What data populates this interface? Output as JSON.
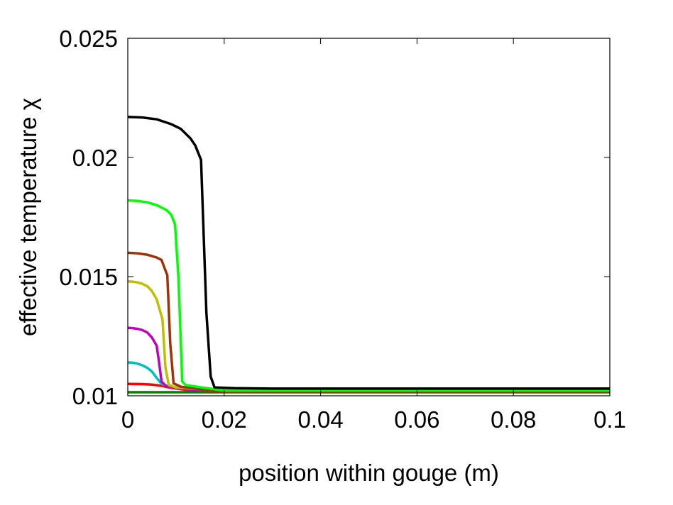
{
  "chart_data": {
    "type": "line",
    "xlabel": "position within gouge (m)",
    "ylabel": "effective temperature χ",
    "xlim": [
      0,
      0.1
    ],
    "ylim": [
      0.01,
      0.025
    ],
    "xticks": [
      "0",
      "0.02",
      "0.04",
      "0.06",
      "0.08",
      "0.1"
    ],
    "yticks": [
      "0.01",
      "0.015",
      "0.02",
      "0.025"
    ],
    "xtick_values": [
      0,
      0.02,
      0.04,
      0.06,
      0.08,
      0.1
    ],
    "ytick_values": [
      0.01,
      0.015,
      0.02,
      0.025
    ],
    "grid": false,
    "series": [
      {
        "color": "#007f00",
        "x": [
          0,
          0.1
        ],
        "y": [
          0.01015,
          0.01015
        ]
      },
      {
        "color": "#ff0000",
        "x": [
          0,
          0.003,
          0.005,
          0.007,
          0.009,
          0.012,
          0.02,
          0.1
        ],
        "y": [
          0.0105,
          0.01049,
          0.01047,
          0.01042,
          0.01033,
          0.01025,
          0.0102,
          0.0102
        ]
      },
      {
        "color": "#00bfbf",
        "x": [
          0,
          0.001,
          0.002,
          0.003,
          0.004,
          0.005,
          0.006,
          0.007,
          0.009,
          0.012,
          0.02,
          0.1
        ],
        "y": [
          0.0114,
          0.01139,
          0.01135,
          0.01128,
          0.01118,
          0.01102,
          0.01075,
          0.0105,
          0.01035,
          0.01027,
          0.01022,
          0.01022
        ]
      },
      {
        "color": "#bf00bf",
        "x": [
          0,
          0.001,
          0.002,
          0.003,
          0.004,
          0.005,
          0.006,
          0.0065,
          0.007,
          0.008,
          0.012,
          0.02,
          0.1
        ],
        "y": [
          0.01285,
          0.01284,
          0.01281,
          0.01276,
          0.01266,
          0.01245,
          0.0121,
          0.0114,
          0.0106,
          0.0104,
          0.01027,
          0.01022,
          0.01022
        ]
      },
      {
        "color": "#bfbf00",
        "x": [
          0,
          0.001,
          0.002,
          0.003,
          0.004,
          0.005,
          0.006,
          0.0072,
          0.0078,
          0.0085,
          0.01,
          0.015,
          0.02,
          0.1
        ],
        "y": [
          0.0148,
          0.01479,
          0.01476,
          0.0147,
          0.0146,
          0.0144,
          0.01405,
          0.0132,
          0.0112,
          0.01045,
          0.01035,
          0.01028,
          0.01022,
          0.01022
        ]
      },
      {
        "color": "#a0320a",
        "x": [
          0,
          0.002,
          0.004,
          0.006,
          0.007,
          0.0082,
          0.0088,
          0.0095,
          0.011,
          0.015,
          0.02,
          0.1
        ],
        "y": [
          0.016,
          0.01598,
          0.01592,
          0.0158,
          0.0157,
          0.01505,
          0.0122,
          0.01052,
          0.01038,
          0.01028,
          0.01022,
          0.01022
        ]
      },
      {
        "color": "#00ff00",
        "x": [
          0,
          0.002,
          0.004,
          0.006,
          0.008,
          0.009,
          0.0098,
          0.0105,
          0.0113,
          0.012,
          0.016,
          0.02,
          0.1
        ],
        "y": [
          0.0182,
          0.01818,
          0.01812,
          0.018,
          0.0178,
          0.0176,
          0.0172,
          0.015,
          0.0106,
          0.01045,
          0.01033,
          0.01022,
          0.01022
        ]
      },
      {
        "color": "#000000",
        "x": [
          0,
          0.003,
          0.006,
          0.009,
          0.011,
          0.013,
          0.014,
          0.0152,
          0.0163,
          0.0172,
          0.018,
          0.022,
          0.03,
          0.1
        ],
        "y": [
          0.0217,
          0.02168,
          0.0216,
          0.0214,
          0.0212,
          0.0208,
          0.0205,
          0.0199,
          0.0135,
          0.0108,
          0.01035,
          0.01032,
          0.0103,
          0.0103
        ]
      }
    ]
  }
}
